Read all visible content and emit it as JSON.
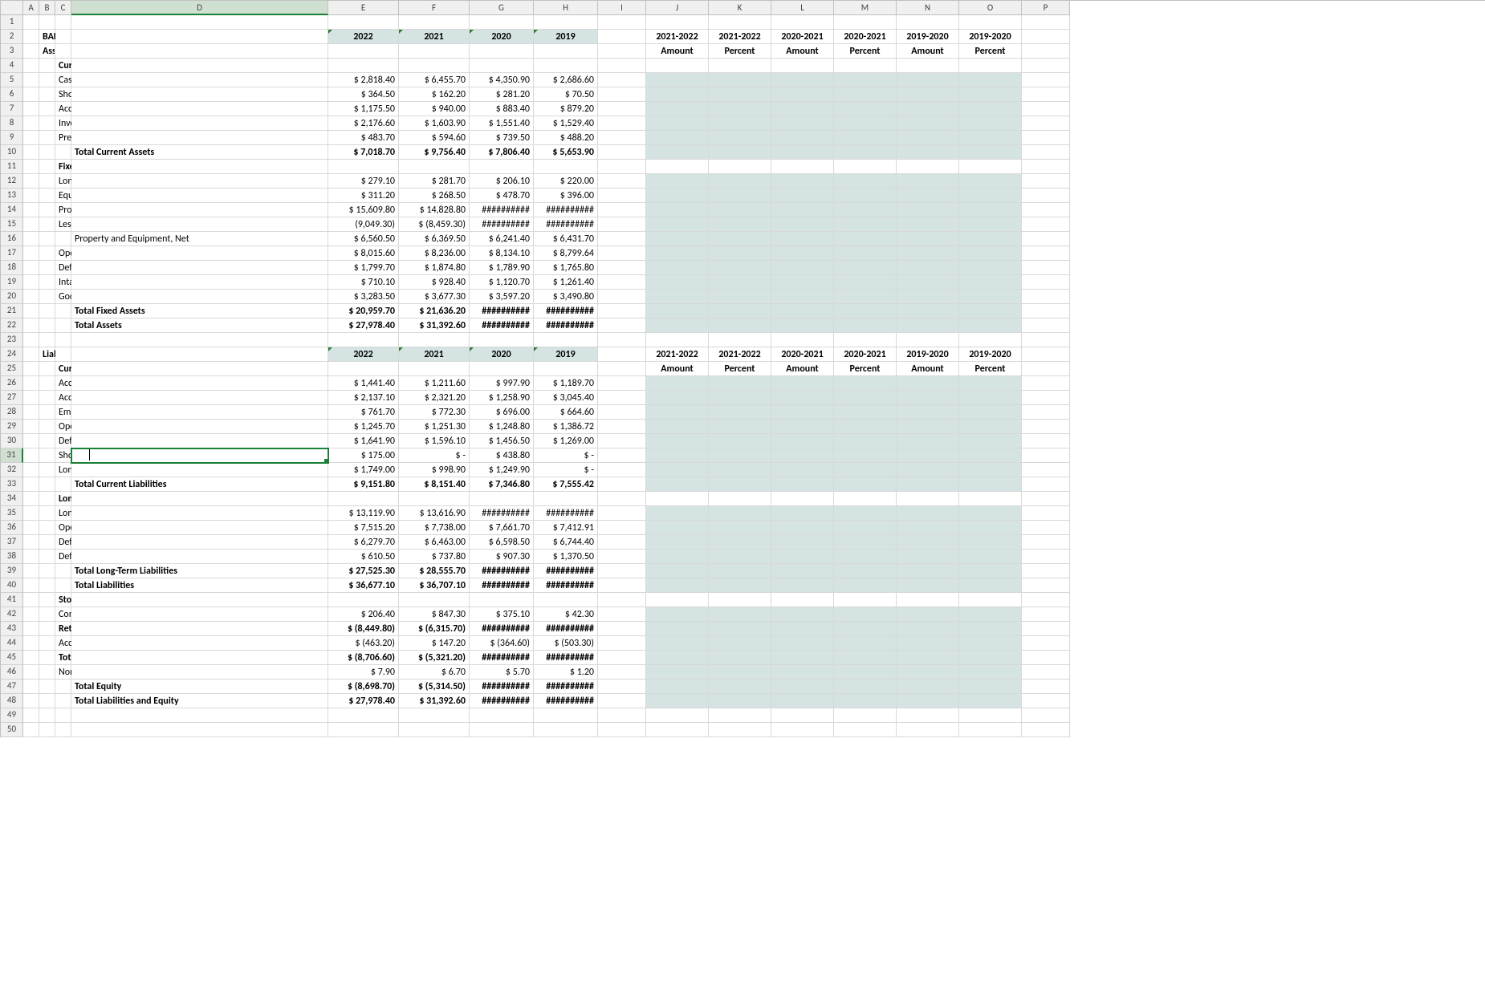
{
  "columns": {
    "letters": [
      "A",
      "B",
      "C",
      "D",
      "E",
      "F",
      "G",
      "H",
      "I",
      "J",
      "K",
      "L",
      "M",
      "N",
      "O",
      "P"
    ],
    "widths": [
      28,
      20,
      20,
      20,
      320,
      88,
      88,
      80,
      80,
      60,
      78,
      78,
      78,
      78,
      78,
      78,
      60
    ],
    "active": "D"
  },
  "activeRow": 31,
  "lastRow": 50,
  "hash": "##########",
  "yearHeaders": {
    "y22": "2022",
    "y21": "2021",
    "y20": "2020",
    "y19": "2019"
  },
  "analysisHeaders": {
    "a1": "2021-2022",
    "a2": "2021-2022",
    "a3": "2020-2021",
    "a4": "2020-2021",
    "a5": "2019-2020",
    "a6": "2019-2020",
    "amt": "Amount",
    "pct": "Percent"
  },
  "text": {
    "title": "BALANCE SHEET DATA",
    "assets": "Assets:",
    "currentAssets": "Current Assets:",
    "cash": "Cash and cash equivalents",
    "stinv": "Short-term investments (Marketable Securities)",
    "ar": "Accounts receivable - net",
    "inv": "Inventories",
    "prepaid": "Prepaid expenses and other current assets",
    "tca": "Total Current Assets",
    "fixedAssets": "Fixed Assets:",
    "ltinv": "Long-term investments",
    "eqcost": "Equity and cost investments",
    "ppeg": "Property and equipment, Gross",
    "lessdep": "Less: Accumulated depreciation",
    "ppen": "Property and Equipment, Net",
    "oplease": "Operating Lease, Right-of-use Asset",
    "deftax": "Deferred income taxes",
    "intang": "Intangible and Other assets",
    "goodwill": "Goodwill",
    "tfa": "Total Fixed Assets",
    "ta": "Total Assets",
    "liabeq": "Liabilities and Equities:",
    "curliab": "Current Liabilities:",
    "ap": "Accounts payable",
    "accliab": "Accrued liabilities",
    "empliab": "Employee-related Liabilities, Current",
    "opliabc": "Operating Lease liability, Current",
    "defrevC": "Deferred Revenue, Current",
    "stdebt": "Short-term Debt",
    "ltdcm": "Long-term Debt, Current Maturities",
    "tcl": "Total Current Liabilities",
    "ltl": "Long-Term Liabilities:",
    "ltd": "Long-term debt",
    "opliabnc": "Operating Lease liability, Noncurrent",
    "defrevNC": "Deferred Revenue, Noncurrent",
    "deftaxnc": "Deferred Tax and Other Liabilities, Noncurrent",
    "tltl": "Total Long-Term Liabilities",
    "tl": "Total Liabilities",
    "se": "Stockholders' Equity",
    "cs": "Common stock + Additional paid in capital",
    "re": "Retained earnings <deficit>",
    "aoci": "Accum. other comprehensive income <loss>",
    "tcse": "Total Common Shareholders' Equity",
    "nci": "Noncontrolling interests",
    "te": "Total Equity",
    "tle": "Total Liabilities and Equity"
  },
  "v": {
    "cash": {
      "e": "$   2,818.40",
      "f": "$   6,455.70",
      "g": "$ 4,350.90",
      "h": "$ 2,686.60"
    },
    "stinv": {
      "e": "$      364.50",
      "f": "$      162.20",
      "g": "$    281.20",
      "h": "$      70.50"
    },
    "ar": {
      "e": "$   1,175.50",
      "f": "$      940.00",
      "g": "$    883.40",
      "h": "$    879.20"
    },
    "inv": {
      "e": "$   2,176.60",
      "f": "$   1,603.90",
      "g": "$ 1,551.40",
      "h": "$ 1,529.40"
    },
    "prepaid": {
      "e": "$      483.70",
      "f": "$      594.60",
      "g": "$    739.50",
      "h": "$    488.20"
    },
    "tca": {
      "e": "$   7,018.70",
      "f": "$   9,756.40",
      "g": "$ 7,806.40",
      "h": "$ 5,653.90"
    },
    "ltinv": {
      "e": "$      279.10",
      "f": "$      281.70",
      "g": "$    206.10",
      "h": "$    220.00"
    },
    "eqcost": {
      "e": "$      311.20",
      "f": "$      268.50",
      "g": "$    478.70",
      "h": "$    396.00"
    },
    "ppeg": {
      "e": "$ 15,609.80",
      "f": "$ 14,828.80",
      "g": "##########",
      "h": "##########"
    },
    "lessdep": {
      "e": "(9,049.30)",
      "f": "$  (8,459.30)",
      "g": "##########",
      "h": "##########"
    },
    "ppen": {
      "e": "$   6,560.50",
      "f": "$   6,369.50",
      "g": "$ 6,241.40",
      "h": "$ 6,431.70"
    },
    "oplease": {
      "e": "$   8,015.60",
      "f": "$   8,236.00",
      "g": "$ 8,134.10",
      "h": "$ 8,799.64"
    },
    "deftax": {
      "e": "$   1,799.70",
      "f": "$   1,874.80",
      "g": "$ 1,789.90",
      "h": "$ 1,765.80"
    },
    "intang": {
      "e": "$      710.10",
      "f": "$      928.40",
      "g": "$ 1,120.70",
      "h": "$ 1,261.40"
    },
    "goodwill": {
      "e": "$   3,283.50",
      "f": "$   3,677.30",
      "g": "$ 3,597.20",
      "h": "$ 3,490.80"
    },
    "tfa": {
      "e": "$ 20,959.70",
      "f": "$ 21,636.20",
      "g": "##########",
      "h": "##########"
    },
    "ta": {
      "e": "$ 27,978.40",
      "f": "$ 31,392.60",
      "g": "##########",
      "h": "##########"
    },
    "ap": {
      "e": "$   1,441.40",
      "f": "$   1,211.60",
      "g": "$    997.90",
      "h": "$ 1,189.70"
    },
    "accliab": {
      "e": "$   2,137.10",
      "f": "$   2,321.20",
      "g": "$ 1,258.90",
      "h": "$ 3,045.40"
    },
    "empliab": {
      "e": "$      761.70",
      "f": "$      772.30",
      "g": "$    696.00",
      "h": "$    664.60"
    },
    "opliabc": {
      "e": "$   1,245.70",
      "f": "$   1,251.30",
      "g": "$ 1,248.80",
      "h": "$ 1,386.72"
    },
    "defrevC": {
      "e": "$   1,641.90",
      "f": "$   1,596.10",
      "g": "$ 1,456.50",
      "h": "$ 1,269.00"
    },
    "stdebt": {
      "e": "$      175.00",
      "f": "$            -",
      "g": "$    438.80",
      "h": "$            -"
    },
    "ltdcm": {
      "e": "$   1,749.00",
      "f": "$      998.90",
      "g": "$ 1,249.90",
      "h": "$            -"
    },
    "tcl": {
      "e": "$   9,151.80",
      "f": "$   8,151.40",
      "g": "$ 7,346.80",
      "h": "$ 7,555.42"
    },
    "ltd": {
      "e": "$ 13,119.90",
      "f": "$ 13,616.90",
      "g": "##########",
      "h": "##########"
    },
    "opliabnc": {
      "e": "$   7,515.20",
      "f": "$   7,738.00",
      "g": "$ 7,661.70",
      "h": "$ 7,412.91"
    },
    "defrevNC": {
      "e": "$   6,279.70",
      "f": "$   6,463.00",
      "g": "$ 6,598.50",
      "h": "$ 6,744.40"
    },
    "deftaxnc": {
      "e": "$      610.50",
      "f": "$      737.80",
      "g": "$    907.30",
      "h": "$ 1,370.50"
    },
    "tltl": {
      "e": "$ 27,525.30",
      "f": "$ 28,555.70",
      "g": "##########",
      "h": "##########"
    },
    "tl": {
      "e": "$ 36,677.10",
      "f": "$ 36,707.10",
      "g": "##########",
      "h": "##########"
    },
    "cs": {
      "e": "$      206.40",
      "f": "$      847.30",
      "g": "$    375.10",
      "h": "$      42.30"
    },
    "re": {
      "e": "$  (8,449.80)",
      "f": "$  (6,315.70)",
      "g": "##########",
      "h": "##########"
    },
    "aoci": {
      "e": "$     (463.20)",
      "f": "$      147.20",
      "g": "$   (364.60)",
      "h": "$   (503.30)"
    },
    "tcse": {
      "e": "$  (8,706.60)",
      "f": "$  (5,321.20)",
      "g": "##########",
      "h": "##########"
    },
    "nci": {
      "e": "$          7.90",
      "f": "$          6.70",
      "g": "$        5.70",
      "h": "$        1.20"
    },
    "te": {
      "e": "$  (8,698.70)",
      "f": "$  (5,314.50)",
      "g": "##########",
      "h": "##########"
    },
    "tle": {
      "e": "$ 27,978.40",
      "f": "$ 31,392.60",
      "g": "##########",
      "h": "##########"
    }
  },
  "colors": {
    "grid": "#d8d8d8",
    "header": "#f0f0f0",
    "fill": "#d5e3e3",
    "selection": "#1a7f37",
    "triangle": "#2e7d32"
  }
}
